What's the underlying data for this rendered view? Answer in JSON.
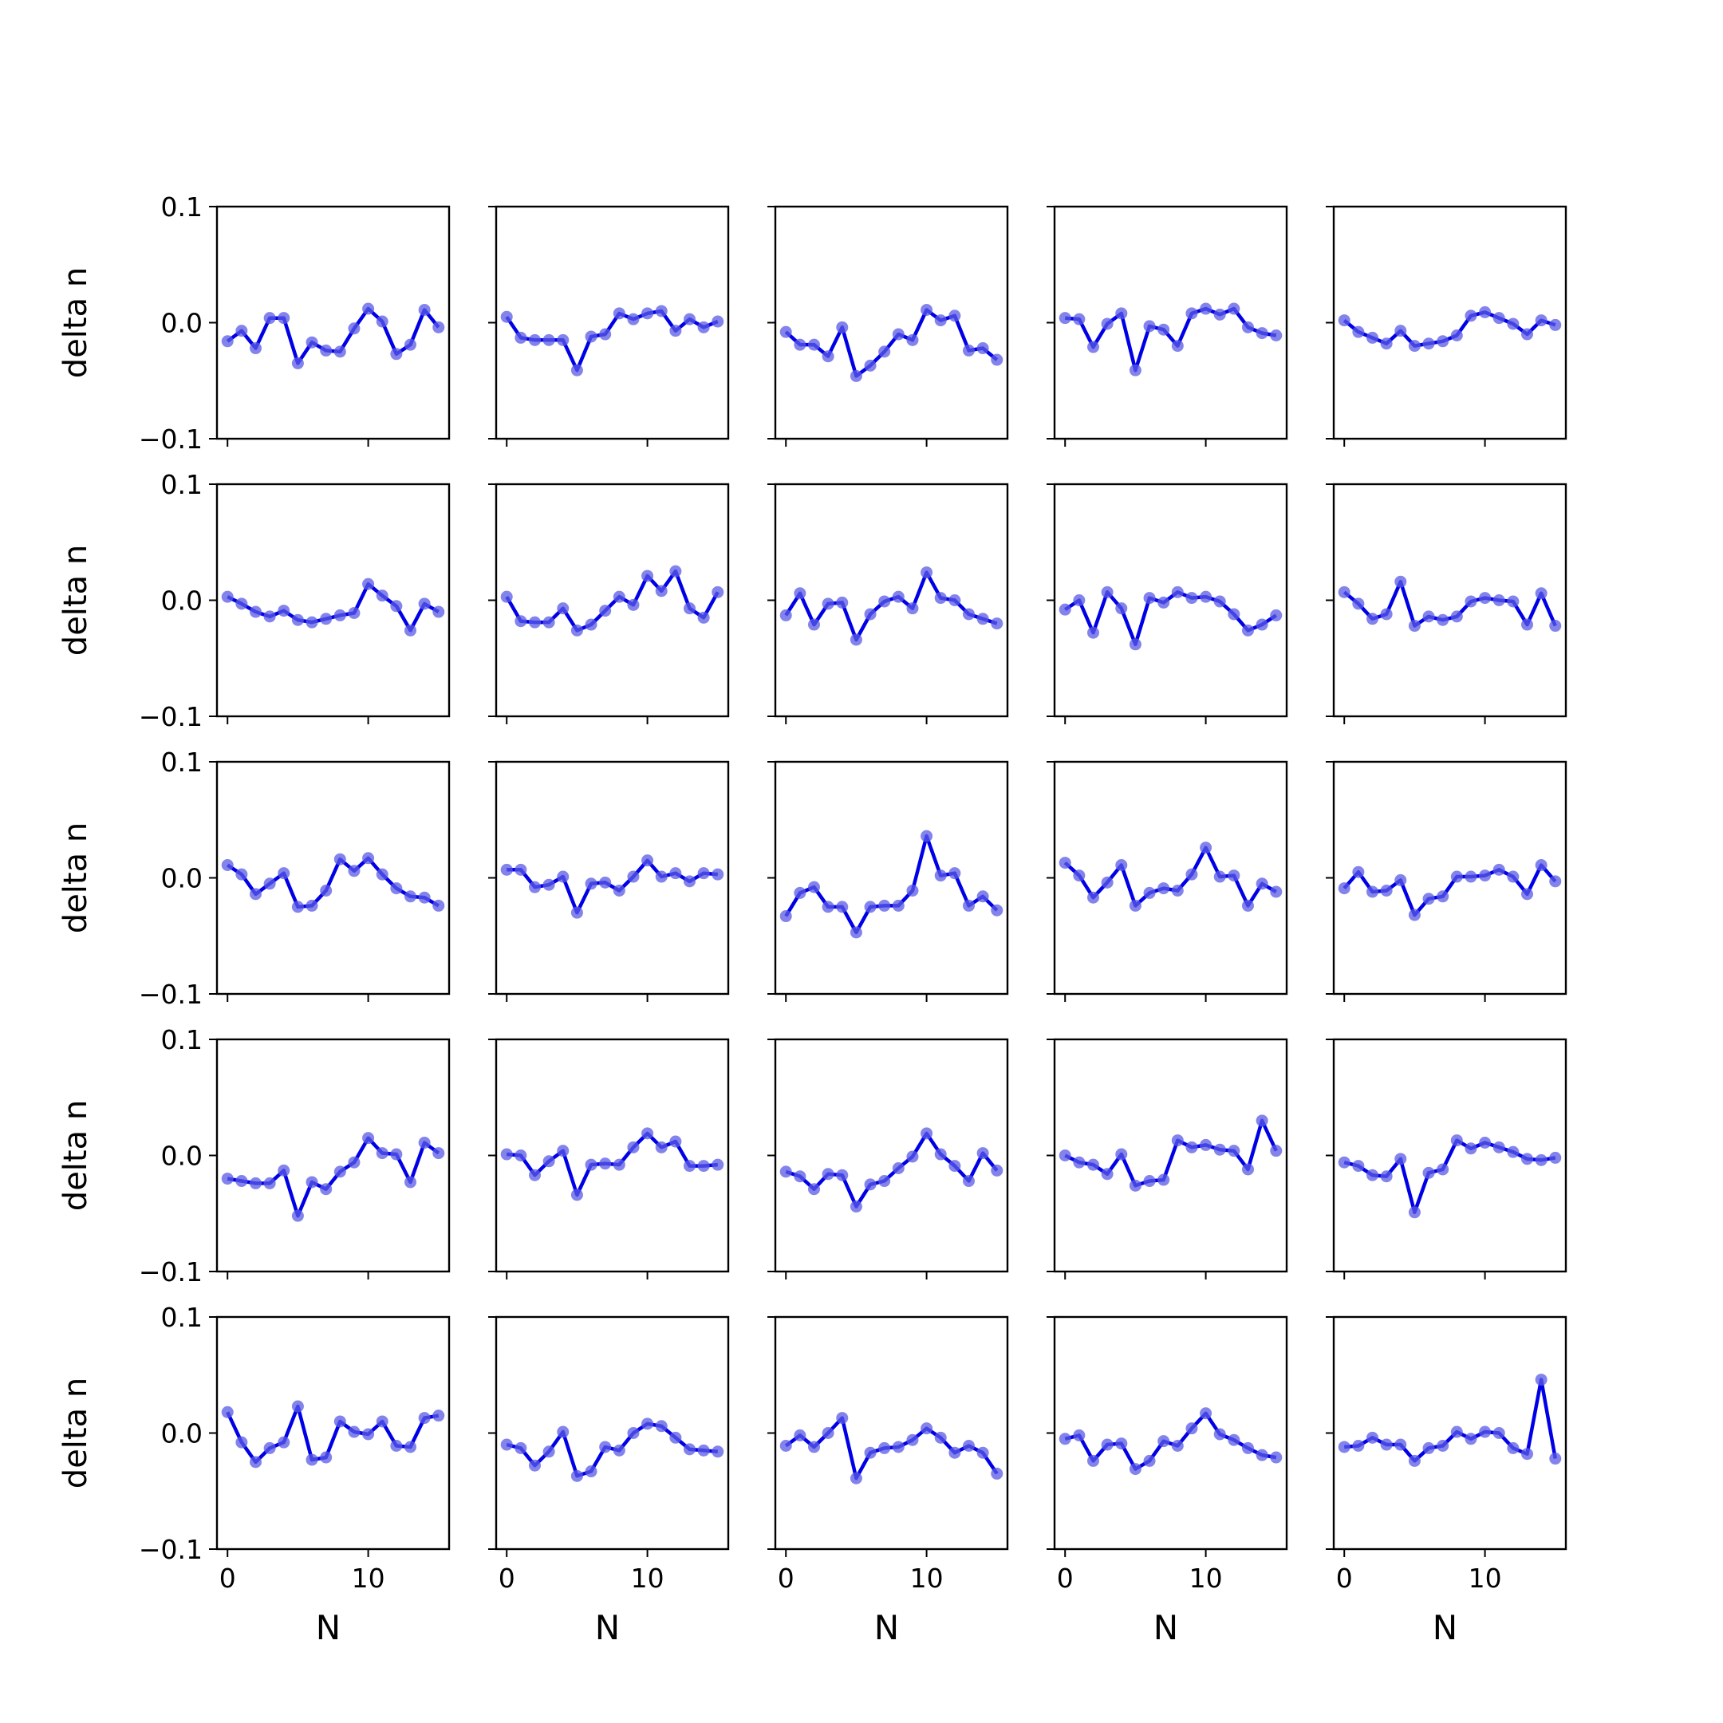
{
  "chart_data": {
    "type": "line",
    "layout_rows": 5,
    "layout_cols": 5,
    "xlabel": "N",
    "ylabel": "delta n",
    "ylim": [
      -0.1,
      0.1
    ],
    "xlim": [
      -0.75,
      15.75
    ],
    "yticks": [
      -0.1,
      0.0,
      0.1
    ],
    "ytick_labels": [
      "−0.1",
      "0.0",
      "0.1"
    ],
    "xticks": [
      0,
      10
    ],
    "xtick_labels": [
      "0",
      "10"
    ],
    "grid": false,
    "line_color": "#0000e6",
    "marker_color": "#5a5ae6",
    "x": [
      0,
      1,
      2,
      3,
      4,
      5,
      6,
      7,
      8,
      9,
      10,
      11,
      12,
      13,
      14,
      15
    ],
    "panels": [
      {
        "values": [
          -0.016,
          -0.007,
          -0.022,
          0.004,
          0.004,
          -0.035,
          -0.017,
          -0.024,
          -0.025,
          -0.005,
          0.012,
          0.001,
          -0.027,
          -0.019,
          0.011,
          -0.004
        ]
      },
      {
        "values": [
          0.005,
          -0.013,
          -0.015,
          -0.015,
          -0.015,
          -0.041,
          -0.012,
          -0.01,
          0.008,
          0.003,
          0.008,
          0.01,
          -0.007,
          0.003,
          -0.004,
          0.001
        ]
      },
      {
        "values": [
          -0.008,
          -0.019,
          -0.019,
          -0.029,
          -0.004,
          -0.046,
          -0.037,
          -0.025,
          -0.01,
          -0.015,
          0.011,
          0.002,
          0.006,
          -0.024,
          -0.022,
          -0.032
        ]
      },
      {
        "values": [
          0.004,
          0.003,
          -0.021,
          -0.001,
          0.008,
          -0.041,
          -0.003,
          -0.006,
          -0.02,
          0.008,
          0.012,
          0.007,
          0.012,
          -0.004,
          -0.009,
          -0.011
        ]
      },
      {
        "values": [
          0.002,
          -0.008,
          -0.013,
          -0.018,
          -0.007,
          -0.02,
          -0.018,
          -0.016,
          -0.011,
          0.006,
          0.009,
          0.004,
          -0.001,
          -0.01,
          0.002,
          -0.002
        ]
      },
      {
        "values": [
          0.003,
          -0.003,
          -0.01,
          -0.014,
          -0.009,
          -0.017,
          -0.019,
          -0.016,
          -0.013,
          -0.011,
          0.014,
          0.004,
          -0.005,
          -0.026,
          -0.003,
          -0.01
        ]
      },
      {
        "values": [
          0.003,
          -0.018,
          -0.019,
          -0.019,
          -0.007,
          -0.026,
          -0.021,
          -0.009,
          0.003,
          -0.004,
          0.021,
          0.008,
          0.025,
          -0.007,
          -0.015,
          0.007
        ]
      },
      {
        "values": [
          -0.013,
          0.006,
          -0.021,
          -0.003,
          -0.002,
          -0.034,
          -0.012,
          -0.001,
          0.003,
          -0.007,
          0.024,
          0.002,
          0.0,
          -0.012,
          -0.016,
          -0.02
        ]
      },
      {
        "values": [
          -0.008,
          0.0,
          -0.028,
          0.007,
          -0.007,
          -0.038,
          0.002,
          -0.002,
          0.007,
          0.002,
          0.003,
          -0.001,
          -0.012,
          -0.026,
          -0.021,
          -0.013
        ]
      },
      {
        "values": [
          0.007,
          -0.003,
          -0.016,
          -0.012,
          0.016,
          -0.022,
          -0.014,
          -0.017,
          -0.014,
          -0.001,
          0.002,
          0.0,
          -0.001,
          -0.021,
          0.006,
          -0.022
        ]
      },
      {
        "values": [
          0.011,
          0.003,
          -0.014,
          -0.005,
          0.004,
          -0.025,
          -0.024,
          -0.011,
          0.016,
          0.006,
          0.017,
          0.003,
          -0.009,
          -0.016,
          -0.017,
          -0.024
        ]
      },
      {
        "values": [
          0.007,
          0.007,
          -0.008,
          -0.006,
          0.001,
          -0.03,
          -0.005,
          -0.004,
          -0.011,
          0.001,
          0.015,
          0.001,
          0.004,
          -0.003,
          0.004,
          0.003
        ]
      },
      {
        "values": [
          -0.033,
          -0.013,
          -0.008,
          -0.025,
          -0.025,
          -0.047,
          -0.025,
          -0.024,
          -0.024,
          -0.011,
          0.036,
          0.002,
          0.004,
          -0.024,
          -0.016,
          -0.028
        ]
      },
      {
        "values": [
          0.013,
          0.002,
          -0.017,
          -0.004,
          0.011,
          -0.024,
          -0.013,
          -0.009,
          -0.011,
          0.003,
          0.026,
          0.001,
          0.002,
          -0.024,
          -0.005,
          -0.012
        ]
      },
      {
        "values": [
          -0.009,
          0.005,
          -0.012,
          -0.011,
          -0.002,
          -0.032,
          -0.018,
          -0.016,
          0.001,
          0.001,
          0.002,
          0.007,
          0.001,
          -0.014,
          0.011,
          -0.003
        ]
      },
      {
        "values": [
          -0.02,
          -0.022,
          -0.024,
          -0.024,
          -0.013,
          -0.052,
          -0.023,
          -0.029,
          -0.014,
          -0.006,
          0.015,
          0.002,
          0.001,
          -0.023,
          0.011,
          0.002
        ]
      },
      {
        "values": [
          0.001,
          0.0,
          -0.017,
          -0.005,
          0.004,
          -0.034,
          -0.008,
          -0.007,
          -0.008,
          0.007,
          0.019,
          0.007,
          0.012,
          -0.009,
          -0.009,
          -0.008
        ]
      },
      {
        "values": [
          -0.014,
          -0.018,
          -0.029,
          -0.016,
          -0.017,
          -0.044,
          -0.025,
          -0.022,
          -0.011,
          -0.001,
          0.019,
          0.001,
          -0.009,
          -0.022,
          0.002,
          -0.013
        ]
      },
      {
        "values": [
          0.0,
          -0.006,
          -0.008,
          -0.016,
          0.001,
          -0.026,
          -0.022,
          -0.021,
          0.013,
          0.007,
          0.009,
          0.005,
          0.004,
          -0.012,
          0.03,
          0.004
        ]
      },
      {
        "values": [
          -0.006,
          -0.009,
          -0.017,
          -0.018,
          -0.003,
          -0.049,
          -0.015,
          -0.012,
          0.013,
          0.006,
          0.011,
          0.007,
          0.003,
          -0.003,
          -0.004,
          -0.002
        ]
      },
      {
        "values": [
          0.018,
          -0.008,
          -0.025,
          -0.013,
          -0.008,
          0.023,
          -0.023,
          -0.021,
          0.01,
          0.001,
          -0.001,
          0.01,
          -0.011,
          -0.012,
          0.013,
          0.015
        ]
      },
      {
        "values": [
          -0.01,
          -0.013,
          -0.028,
          -0.016,
          0.001,
          -0.037,
          -0.033,
          -0.012,
          -0.015,
          0.0,
          0.008,
          0.006,
          -0.004,
          -0.014,
          -0.015,
          -0.016
        ]
      },
      {
        "values": [
          -0.011,
          -0.002,
          -0.012,
          0.0,
          0.013,
          -0.039,
          -0.017,
          -0.013,
          -0.012,
          -0.006,
          0.004,
          -0.004,
          -0.017,
          -0.011,
          -0.017,
          -0.035
        ]
      },
      {
        "values": [
          -0.005,
          -0.002,
          -0.024,
          -0.01,
          -0.009,
          -0.031,
          -0.024,
          -0.007,
          -0.011,
          0.004,
          0.017,
          -0.001,
          -0.006,
          -0.013,
          -0.019,
          -0.021
        ]
      },
      {
        "values": [
          -0.012,
          -0.011,
          -0.004,
          -0.01,
          -0.01,
          -0.024,
          -0.013,
          -0.011,
          0.001,
          -0.005,
          0.001,
          0.0,
          -0.013,
          -0.018,
          0.046,
          -0.022
        ]
      }
    ]
  }
}
